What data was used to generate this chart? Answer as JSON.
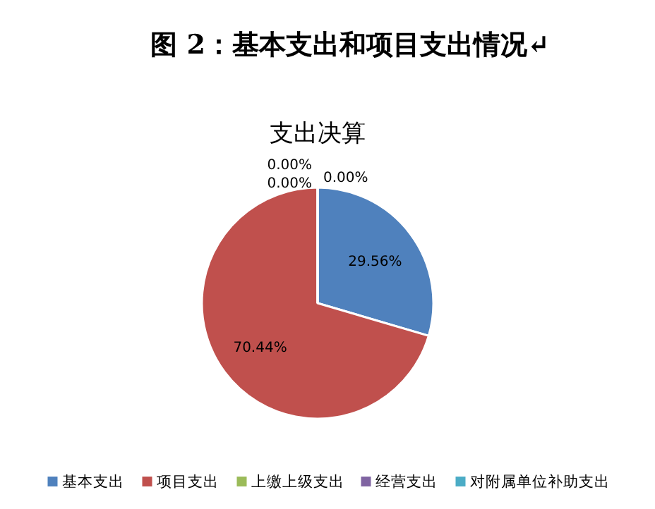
{
  "chart_data": {
    "type": "pie",
    "title": "图 2：基本支出和项目支出情况↵",
    "subtitle": "支出决算",
    "categories": [
      "基本支出",
      "项目支出",
      "上缴上级支出",
      "经营支出",
      "对附属单位补助支出"
    ],
    "values": [
      29.56,
      70.44,
      0.0,
      0.0,
      0.0
    ],
    "colors": [
      "#4f81bd",
      "#c0504d",
      "#9bbb59",
      "#8064a2",
      "#4bacc6"
    ],
    "value_labels": [
      "29.56%",
      "70.44%",
      "0.00%",
      "0.00%",
      "0.00%"
    ],
    "legend": "bottom"
  }
}
